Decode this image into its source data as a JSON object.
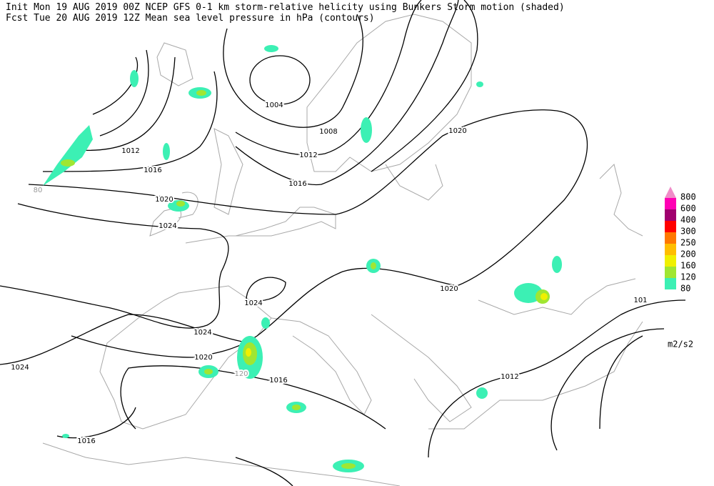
{
  "header": {
    "line1": "Init  Mon 19 AUG 2019 00Z  NCEP GFS 0-1 km storm-relative helicity using Bunkers Storm motion (shaded)",
    "line2": "Fcst Tue 20 AUG 2019 12Z  Mean sea level pressure in hPa (contours)"
  },
  "contour_labels": [
    "1004",
    "1008",
    "1012",
    "1016",
    "1020",
    "1012",
    "1016",
    "1020",
    "1024",
    "1024",
    "1024",
    "1020",
    "1024",
    "1020",
    "101",
    "1012",
    "1016",
    "1016"
  ],
  "shading_labels": [
    "80",
    "120"
  ],
  "legend": {
    "unit": "m2/s2",
    "items": [
      {
        "label": "800",
        "color": "#f08cc8"
      },
      {
        "label": "600",
        "color": "#ff00b4"
      },
      {
        "label": "400",
        "color": "#a0006e"
      },
      {
        "label": "300",
        "color": "#ff0000"
      },
      {
        "label": "250",
        "color": "#ff7800"
      },
      {
        "label": "200",
        "color": "#ffbe00"
      },
      {
        "label": "160",
        "color": "#f0f000"
      },
      {
        "label": "120",
        "color": "#a0e632"
      },
      {
        "label": "80",
        "color": "#3cf0b4"
      }
    ]
  }
}
